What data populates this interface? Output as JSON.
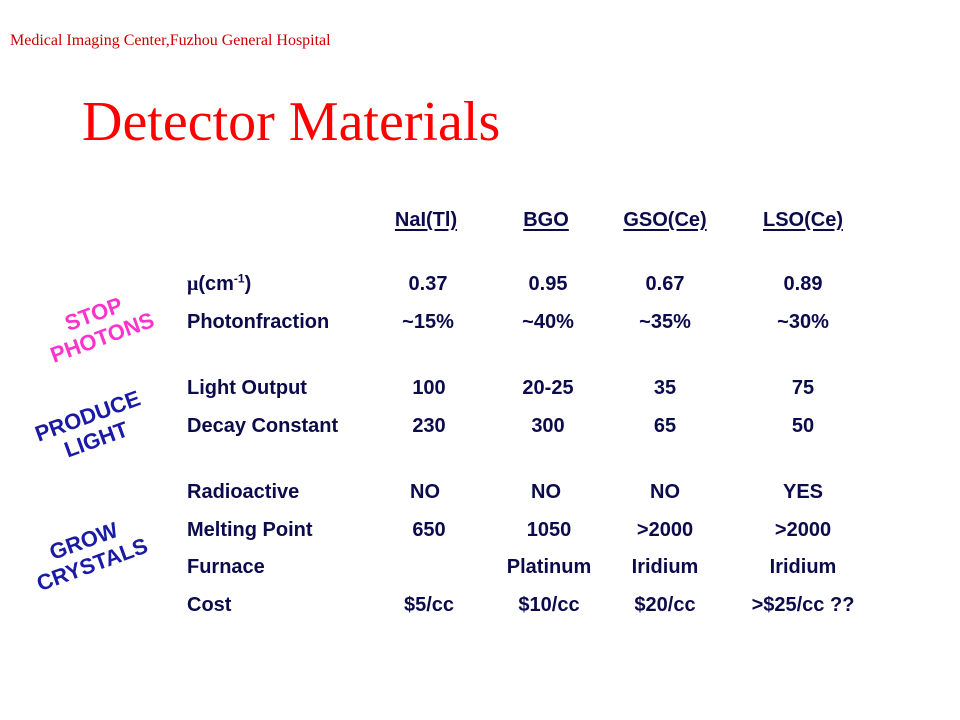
{
  "header": "Medical Imaging Center,Fuzhou General Hospital",
  "title": "Detector Materials",
  "columns": [
    "NaI(Tl)",
    "BGO",
    "GSO(Ce)",
    "LSO(Ce)"
  ],
  "mu_label": {
    "symbol": "μ",
    "prefix": "(cm",
    "exp": "-1",
    "suffix": ")"
  },
  "rows": {
    "mu": [
      "0.37",
      "0.95",
      "0.67",
      "0.89"
    ],
    "photonfraction": {
      "label": "Photonfraction",
      "values": [
        "~15%",
        "~40%",
        "~35%",
        "~30%"
      ]
    },
    "light_output": {
      "label": "Light Output",
      "values": [
        "100",
        "20-25",
        "35",
        "75"
      ]
    },
    "decay_constant": {
      "label": "Decay Constant",
      "values": [
        "230",
        "300",
        "65",
        "50"
      ]
    },
    "radioactive": {
      "label": "Radioactive",
      "values": [
        "NO",
        "NO",
        "NO",
        "YES"
      ]
    },
    "melting_point": {
      "label": "Melting Point",
      "values": [
        "650",
        "1050",
        ">2000",
        ">2000"
      ]
    },
    "furnace": {
      "label": "Furnace",
      "values": [
        "",
        "Platinum",
        "Iridium",
        "Iridium"
      ]
    },
    "cost": {
      "label": "Cost",
      "values": [
        "$5/cc",
        "$10/cc",
        "$20/cc",
        ">$25/cc ??"
      ]
    }
  },
  "groups": {
    "stop": [
      "STOP",
      "PHOTONS"
    ],
    "produce": [
      "PRODUCE",
      "LIGHT"
    ],
    "grow": [
      "GROW",
      "CRYSTALS"
    ]
  },
  "colors": {
    "header": "#cc0000",
    "title": "#ff0000",
    "table_text": "#0b0b4b",
    "stop": "#ff33cc",
    "produce": "#1a1aa6",
    "grow": "#1a1aa6"
  }
}
